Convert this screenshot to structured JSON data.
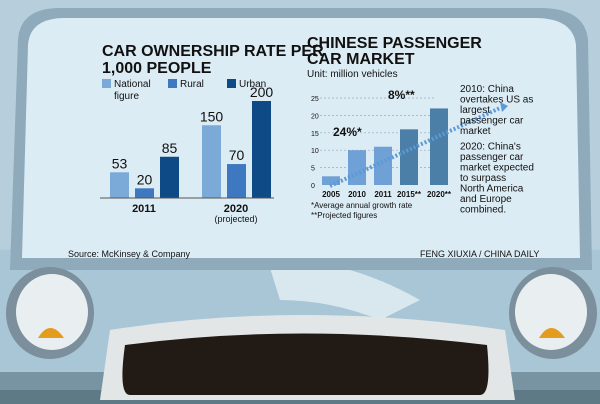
{
  "chart_data": [
    {
      "type": "bar",
      "title": "CAR OWNERSHIP RATE PER 1,000 PEOPLE",
      "categories": [
        "2011",
        "2020"
      ],
      "category_sublabels": [
        "",
        "(projected)"
      ],
      "series": [
        {
          "name": "National figure",
          "values": [
            53,
            150
          ],
          "color": "#7ba9d8"
        },
        {
          "name": "Rural",
          "values": [
            20,
            70
          ],
          "color": "#3e78c0"
        },
        {
          "name": "Urban",
          "values": [
            85,
            200
          ],
          "color": "#0d4a86"
        }
      ],
      "legend": "top",
      "grid": false,
      "ylim": [
        0,
        210
      ]
    },
    {
      "type": "bar",
      "title": "CHINESE PASSENGER CAR MARKET",
      "subtitle": "Unit: million vehicles",
      "categories": [
        "2005",
        "2010",
        "2011",
        "2015**",
        "2020**"
      ],
      "values": [
        2.5,
        10,
        11,
        16,
        22
      ],
      "colors": [
        "#6fa0d6",
        "#6fa0d6",
        "#6fa0d6",
        "#4c7fa8",
        "#4c7fa8"
      ],
      "yticks": [
        "0",
        "5",
        "10",
        "15",
        "20",
        "25"
      ],
      "ylim": [
        0,
        25
      ],
      "grid": true,
      "annotations": [
        {
          "text": "24%*"
        },
        {
          "text": "8%**"
        }
      ],
      "notes": [
        "*Average annual growth rate",
        "**Projected figures"
      ],
      "side_text": [
        "2010: China overtakes US as largest passenger car market",
        "2020: China's passenger car market expected to surpass North America and Europe combined."
      ]
    }
  ],
  "footer": {
    "source": "Source: McKinsey & Company",
    "credit": "FENG XIUXIA / CHINA DAILY"
  }
}
